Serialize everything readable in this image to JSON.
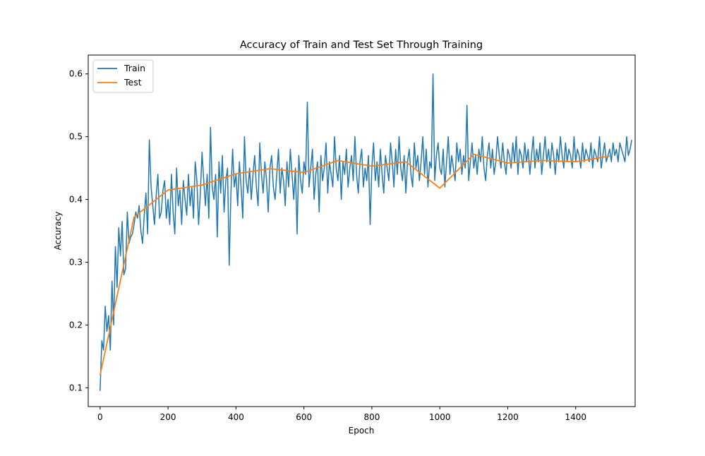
{
  "chart_data": {
    "type": "line",
    "title": "Accuracy of Train and Test Set Through Training",
    "xlabel": "Epoch",
    "ylabel": "Accuracy",
    "xlim": [
      -35,
      1575
    ],
    "ylim": [
      0.07,
      0.63
    ],
    "xticks": [
      0,
      200,
      400,
      600,
      800,
      1000,
      1200,
      1400
    ],
    "yticks": [
      0.1,
      0.2,
      0.3,
      0.4,
      0.5,
      0.6
    ],
    "ytick_labels": [
      "0.1",
      "0.2",
      "0.3",
      "0.4",
      "0.5",
      "0.6"
    ],
    "grid": false,
    "legend_position": "top-left",
    "series": [
      {
        "name": "Train",
        "color": "#1f77b4",
        "x_start": 0,
        "x_step": 5,
        "note_values": "Noisy training accuracy sampled every 5 epochs (0 to 1500)",
        "values": [
          0.095,
          0.175,
          0.16,
          0.23,
          0.19,
          0.215,
          0.16,
          0.27,
          0.2,
          0.325,
          0.26,
          0.355,
          0.31,
          0.365,
          0.28,
          0.29,
          0.38,
          0.33,
          0.34,
          0.345,
          0.36,
          0.38,
          0.37,
          0.39,
          0.35,
          0.33,
          0.375,
          0.41,
          0.345,
          0.495,
          0.42,
          0.39,
          0.36,
          0.405,
          0.44,
          0.37,
          0.38,
          0.415,
          0.43,
          0.37,
          0.4,
          0.36,
          0.44,
          0.38,
          0.345,
          0.45,
          0.39,
          0.415,
          0.36,
          0.43,
          0.4,
          0.375,
          0.44,
          0.39,
          0.42,
          0.37,
          0.46,
          0.43,
          0.36,
          0.41,
          0.475,
          0.43,
          0.39,
          0.44,
          0.37,
          0.515,
          0.42,
          0.4,
          0.44,
          0.34,
          0.46,
          0.41,
          0.47,
          0.38,
          0.43,
          0.45,
          0.295,
          0.41,
          0.48,
          0.42,
          0.44,
          0.39,
          0.46,
          0.42,
          0.37,
          0.5,
          0.43,
          0.41,
          0.45,
          0.4,
          0.44,
          0.47,
          0.42,
          0.39,
          0.49,
          0.44,
          0.41,
          0.46,
          0.43,
          0.38,
          0.45,
          0.47,
          0.42,
          0.4,
          0.44,
          0.48,
          0.41,
          0.45,
          0.43,
          0.39,
          0.46,
          0.42,
          0.48,
          0.44,
          0.4,
          0.45,
          0.345,
          0.47,
          0.43,
          0.41,
          0.46,
          0.44,
          0.555,
          0.42,
          0.45,
          0.48,
          0.4,
          0.44,
          0.46,
          0.38,
          0.47,
          0.43,
          0.45,
          0.49,
          0.41,
          0.46,
          0.44,
          0.42,
          0.5,
          0.45,
          0.43,
          0.47,
          0.4,
          0.46,
          0.44,
          0.48,
          0.42,
          0.45,
          0.47,
          0.43,
          0.5,
          0.44,
          0.41,
          0.46,
          0.48,
          0.42,
          0.45,
          0.43,
          0.47,
          0.36,
          0.45,
          0.49,
          0.43,
          0.46,
          0.42,
          0.48,
          0.44,
          0.41,
          0.47,
          0.45,
          0.43,
          0.49,
          0.46,
          0.42,
          0.48,
          0.44,
          0.5,
          0.45,
          0.43,
          0.47,
          0.41,
          0.46,
          0.48,
          0.44,
          0.42,
          0.49,
          0.45,
          0.47,
          0.43,
          0.46,
          0.5,
          0.44,
          0.48,
          0.42,
          0.46,
          0.45,
          0.6,
          0.43,
          0.47,
          0.49,
          0.45,
          0.44,
          0.48,
          0.42,
          0.46,
          0.5,
          0.44,
          0.47,
          0.45,
          0.43,
          0.49,
          0.46,
          0.48,
          0.44,
          0.47,
          0.45,
          0.55,
          0.43,
          0.46,
          0.49,
          0.45,
          0.47,
          0.44,
          0.48,
          0.46,
          0.5,
          0.45,
          0.43,
          0.47,
          0.49,
          0.45,
          0.48,
          0.44,
          0.46,
          0.5,
          0.47,
          0.45,
          0.49,
          0.46,
          0.44,
          0.48,
          0.47,
          0.45,
          0.49,
          0.46,
          0.5,
          0.44,
          0.48,
          0.47,
          0.45,
          0.49,
          0.46,
          0.48,
          0.44,
          0.47,
          0.5,
          0.45,
          0.48,
          0.46,
          0.49,
          0.44,
          0.47,
          0.5,
          0.46,
          0.48,
          0.45,
          0.49,
          0.47,
          0.44,
          0.48,
          0.46,
          0.5,
          0.47,
          0.45,
          0.49,
          0.46,
          0.48,
          0.47,
          0.45,
          0.5,
          0.46,
          0.48,
          0.47,
          0.45,
          0.49,
          0.46,
          0.48,
          0.47,
          0.46,
          0.49,
          0.45,
          0.48,
          0.47,
          0.46,
          0.5,
          0.45,
          0.47,
          0.49,
          0.46,
          0.47,
          0.48,
          0.46,
          0.49,
          0.47,
          0.48,
          0.46,
          0.49,
          0.48,
          0.47,
          0.46,
          0.5,
          0.47,
          0.48,
          0.495
        ]
      },
      {
        "name": "Test",
        "color": "#ff7f0e",
        "x": [
          0,
          100,
          200,
          300,
          400,
          500,
          600,
          700,
          800,
          900,
          1000,
          1100,
          1200,
          1300,
          1400,
          1500
        ],
        "values": [
          0.12,
          0.372,
          0.415,
          0.423,
          0.441,
          0.449,
          0.443,
          0.462,
          0.453,
          0.46,
          0.418,
          0.472,
          0.458,
          0.462,
          0.46,
          0.469
        ]
      }
    ]
  }
}
